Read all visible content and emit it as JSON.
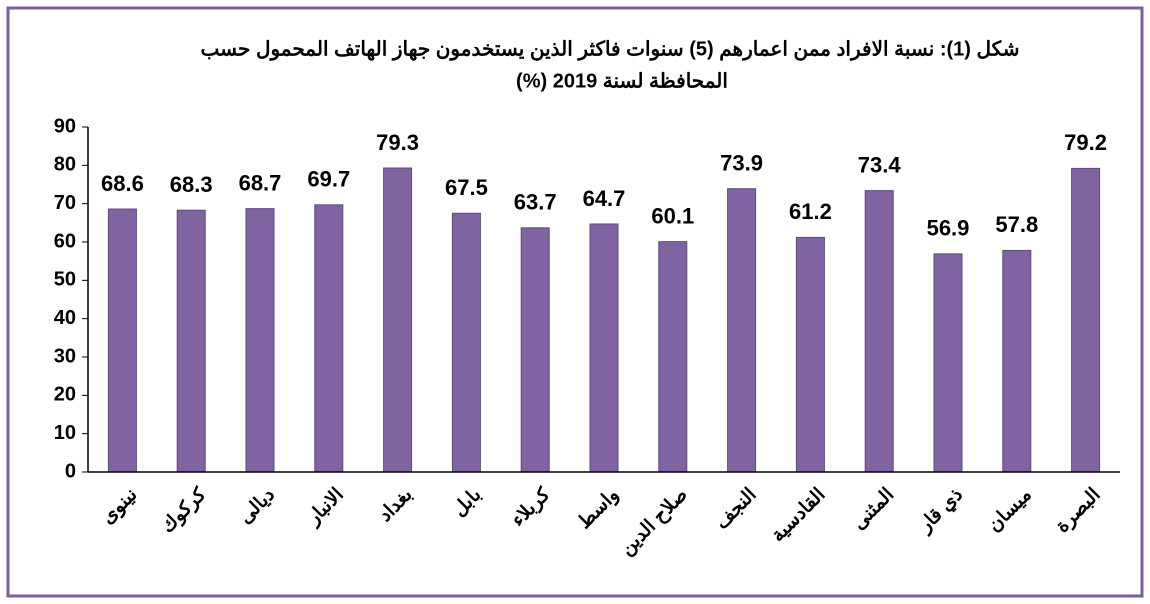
{
  "chart_data": {
    "type": "bar",
    "title": [
      "شكل (1): نسبة الافراد ممن اعمارهم (5) سنوات فاكثر الذين يستخدمون جهاز الهاتف المحمول حسب",
      "المحافظة لسنة 2019 (%)"
    ],
    "categories": [
      "نينوى",
      "كركوك",
      "ديالى",
      "الانبار",
      "بغداد",
      "بابل",
      "كربلاء",
      "واسط",
      "صلاح الدين",
      "النجف",
      "القادسية",
      "المثنى",
      "ذي قار",
      "ميسان",
      "البصرة"
    ],
    "values": [
      68.6,
      68.3,
      68.7,
      69.7,
      79.3,
      67.5,
      63.7,
      64.7,
      60.1,
      73.9,
      61.2,
      73.4,
      56.9,
      57.8,
      79.2
    ],
    "color": "#8064a2",
    "ylim": [
      0,
      90
    ],
    "yticks": [
      0,
      10,
      20,
      30,
      40,
      50,
      60,
      70,
      80,
      90
    ],
    "grid": false
  }
}
